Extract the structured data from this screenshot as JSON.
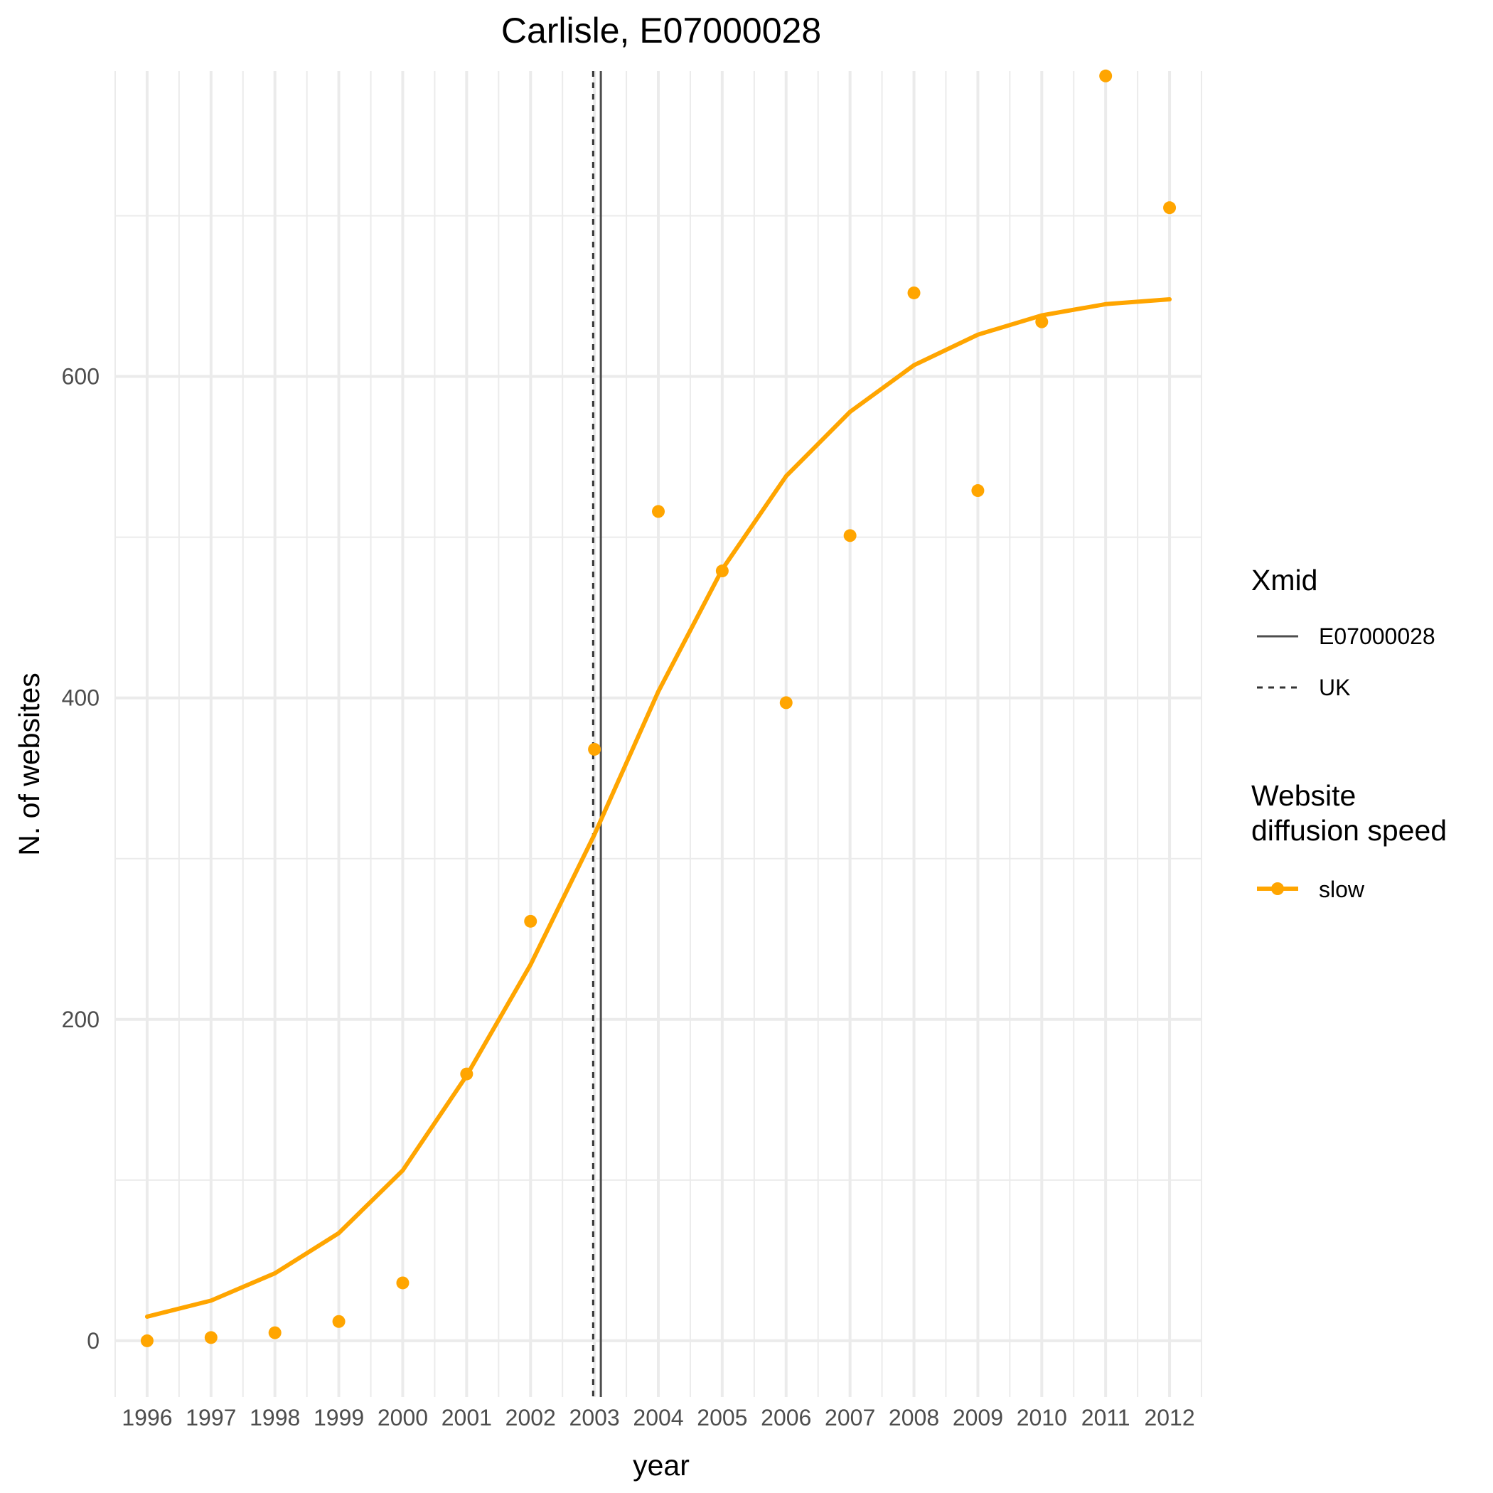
{
  "chart_data": {
    "type": "line",
    "title": "Carlisle, E07000028",
    "xlabel": "year",
    "ylabel": "N. of websites",
    "x": [
      1996,
      1997,
      1998,
      1999,
      2000,
      2001,
      2002,
      2003,
      2004,
      2005,
      2006,
      2007,
      2008,
      2009,
      2010,
      2011,
      2012
    ],
    "x_tick_labels": [
      "1996",
      "1997",
      "1998",
      "1999",
      "2000",
      "2001",
      "2002",
      "2003",
      "2004",
      "2005",
      "2006",
      "2007",
      "2008",
      "2009",
      "2010",
      "2011",
      "2012"
    ],
    "y_ticks": [
      0,
      200,
      400,
      600
    ],
    "y_tick_labels": [
      "0",
      "200",
      "400",
      "600"
    ],
    "xlim": [
      1995.5,
      2012.5
    ],
    "ylim": [
      -35,
      790
    ],
    "grid": true,
    "series": [
      {
        "name": "slow",
        "kind": "fitted-line",
        "color": "#FFA500",
        "values": [
          15,
          25,
          42,
          67,
          106,
          165,
          234,
          315,
          404,
          480,
          538,
          578,
          607,
          626,
          638,
          645,
          648
        ]
      },
      {
        "name": "slow",
        "kind": "points",
        "color": "#FFA500",
        "values": [
          0,
          2,
          5,
          12,
          36,
          166,
          261,
          368,
          516,
          479,
          397,
          501,
          652,
          529,
          634,
          787,
          705
        ]
      }
    ],
    "vertical_lines": [
      {
        "name": "E07000028",
        "x": 2003.1,
        "linetype": "solid",
        "color": "#4d4d4d"
      },
      {
        "name": "UK",
        "x": 2002.98,
        "linetype": "dashed",
        "color": "#333333"
      }
    ],
    "legend": {
      "placement": "right",
      "groups": [
        {
          "title": "Xmid",
          "entries": [
            {
              "label": "E07000028",
              "linetype": "solid"
            },
            {
              "label": "UK",
              "linetype": "dashed"
            }
          ]
        },
        {
          "title_lines": [
            "Website",
            "diffusion speed"
          ],
          "entries": [
            {
              "label": "slow",
              "color": "#FFA500"
            }
          ]
        }
      ]
    }
  }
}
